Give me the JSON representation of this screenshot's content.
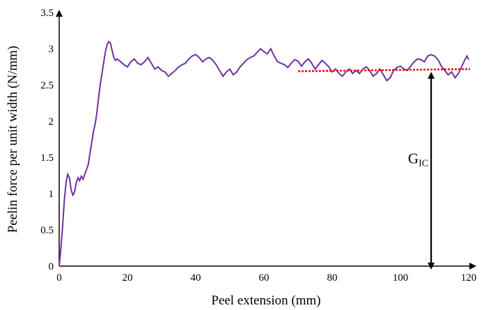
{
  "chart_data": {
    "type": "line",
    "xlabel": "Peel extension (mm)",
    "ylabel": "Peelin force per unit width (N/mm)",
    "xlim": [
      0,
      120
    ],
    "ylim": [
      0,
      3.5
    ],
    "xticks": [
      "0",
      "20",
      "40",
      "60",
      "80",
      "100",
      "120"
    ],
    "yticks": [
      "0",
      "0.5",
      "1",
      "1.5",
      "2",
      "2.5",
      "3",
      "3.5"
    ],
    "grid": false,
    "legend": "none",
    "series": [
      {
        "color": "#7030a0",
        "points": [
          [
            0,
            0.0
          ],
          [
            0.5,
            0.25
          ],
          [
            1,
            0.55
          ],
          [
            1.5,
            0.9
          ],
          [
            2,
            1.15
          ],
          [
            2.5,
            1.27
          ],
          [
            3,
            1.22
          ],
          [
            3.5,
            1.05
          ],
          [
            4,
            0.98
          ],
          [
            4.5,
            1.02
          ],
          [
            5,
            1.15
          ],
          [
            5.5,
            1.22
          ],
          [
            6,
            1.18
          ],
          [
            6.5,
            1.24
          ],
          [
            7,
            1.2
          ],
          [
            7.5,
            1.27
          ],
          [
            8,
            1.33
          ],
          [
            8.5,
            1.4
          ],
          [
            9,
            1.55
          ],
          [
            9.5,
            1.7
          ],
          [
            10,
            1.85
          ],
          [
            10.5,
            1.95
          ],
          [
            11,
            2.1
          ],
          [
            11.5,
            2.3
          ],
          [
            12,
            2.5
          ],
          [
            12.5,
            2.65
          ],
          [
            13,
            2.8
          ],
          [
            13.5,
            2.95
          ],
          [
            14,
            3.05
          ],
          [
            14.5,
            3.1
          ],
          [
            15,
            3.08
          ],
          [
            15.5,
            2.98
          ],
          [
            16,
            2.88
          ],
          [
            16.5,
            2.84
          ],
          [
            17,
            2.86
          ],
          [
            18,
            2.82
          ],
          [
            19,
            2.78
          ],
          [
            20,
            2.75
          ],
          [
            21,
            2.82
          ],
          [
            22,
            2.86
          ],
          [
            23,
            2.8
          ],
          [
            24,
            2.78
          ],
          [
            25,
            2.82
          ],
          [
            26,
            2.88
          ],
          [
            27,
            2.8
          ],
          [
            28,
            2.72
          ],
          [
            29,
            2.75
          ],
          [
            30,
            2.7
          ],
          [
            31,
            2.68
          ],
          [
            32,
            2.62
          ],
          [
            33,
            2.66
          ],
          [
            34,
            2.7
          ],
          [
            35,
            2.75
          ],
          [
            36,
            2.78
          ],
          [
            37,
            2.8
          ],
          [
            38,
            2.86
          ],
          [
            39,
            2.9
          ],
          [
            40,
            2.92
          ],
          [
            41,
            2.88
          ],
          [
            42,
            2.82
          ],
          [
            43,
            2.86
          ],
          [
            44,
            2.88
          ],
          [
            45,
            2.84
          ],
          [
            46,
            2.78
          ],
          [
            47,
            2.7
          ],
          [
            48,
            2.62
          ],
          [
            49,
            2.68
          ],
          [
            50,
            2.72
          ],
          [
            51,
            2.64
          ],
          [
            52,
            2.68
          ],
          [
            53,
            2.75
          ],
          [
            54,
            2.8
          ],
          [
            55,
            2.85
          ],
          [
            56,
            2.88
          ],
          [
            57,
            2.9
          ],
          [
            58,
            2.95
          ],
          [
            59,
            3.0
          ],
          [
            60,
            2.96
          ],
          [
            61,
            2.93
          ],
          [
            62,
            3.0
          ],
          [
            63,
            2.9
          ],
          [
            64,
            2.82
          ],
          [
            65,
            2.8
          ],
          [
            66,
            2.78
          ],
          [
            67,
            2.74
          ],
          [
            68,
            2.8
          ],
          [
            69,
            2.85
          ],
          [
            70,
            2.83
          ],
          [
            71,
            2.76
          ],
          [
            72,
            2.82
          ],
          [
            73,
            2.86
          ],
          [
            74,
            2.8
          ],
          [
            75,
            2.72
          ],
          [
            76,
            2.78
          ],
          [
            77,
            2.84
          ],
          [
            78,
            2.8
          ],
          [
            79,
            2.75
          ],
          [
            80,
            2.68
          ],
          [
            81,
            2.72
          ],
          [
            82,
            2.66
          ],
          [
            83,
            2.62
          ],
          [
            84,
            2.68
          ],
          [
            85,
            2.72
          ],
          [
            86,
            2.66
          ],
          [
            87,
            2.7
          ],
          [
            88,
            2.66
          ],
          [
            89,
            2.72
          ],
          [
            90,
            2.75
          ],
          [
            91,
            2.7
          ],
          [
            92,
            2.62
          ],
          [
            93,
            2.66
          ],
          [
            94,
            2.72
          ],
          [
            95,
            2.64
          ],
          [
            96,
            2.56
          ],
          [
            97,
            2.6
          ],
          [
            98,
            2.7
          ],
          [
            99,
            2.74
          ],
          [
            100,
            2.76
          ],
          [
            101,
            2.72
          ],
          [
            102,
            2.7
          ],
          [
            103,
            2.76
          ],
          [
            104,
            2.82
          ],
          [
            105,
            2.86
          ],
          [
            106,
            2.85
          ],
          [
            107,
            2.82
          ],
          [
            108,
            2.9
          ],
          [
            109,
            2.92
          ],
          [
            110,
            2.9
          ],
          [
            111,
            2.85
          ],
          [
            112,
            2.76
          ],
          [
            113,
            2.7
          ],
          [
            114,
            2.64
          ],
          [
            115,
            2.68
          ],
          [
            116,
            2.6
          ],
          [
            117,
            2.66
          ],
          [
            118,
            2.76
          ],
          [
            119,
            2.86
          ],
          [
            119.5,
            2.9
          ],
          [
            120,
            2.85
          ]
        ]
      }
    ],
    "reference_line": {
      "color": "#ff0000",
      "x_start": 70,
      "x_end": 120,
      "y_start": 2.69,
      "y_end": 2.72
    },
    "annotation": {
      "main": "G",
      "sub": "IC",
      "arrow_x": 109,
      "arrow_y_from": 0,
      "arrow_y_to": 2.72
    }
  }
}
